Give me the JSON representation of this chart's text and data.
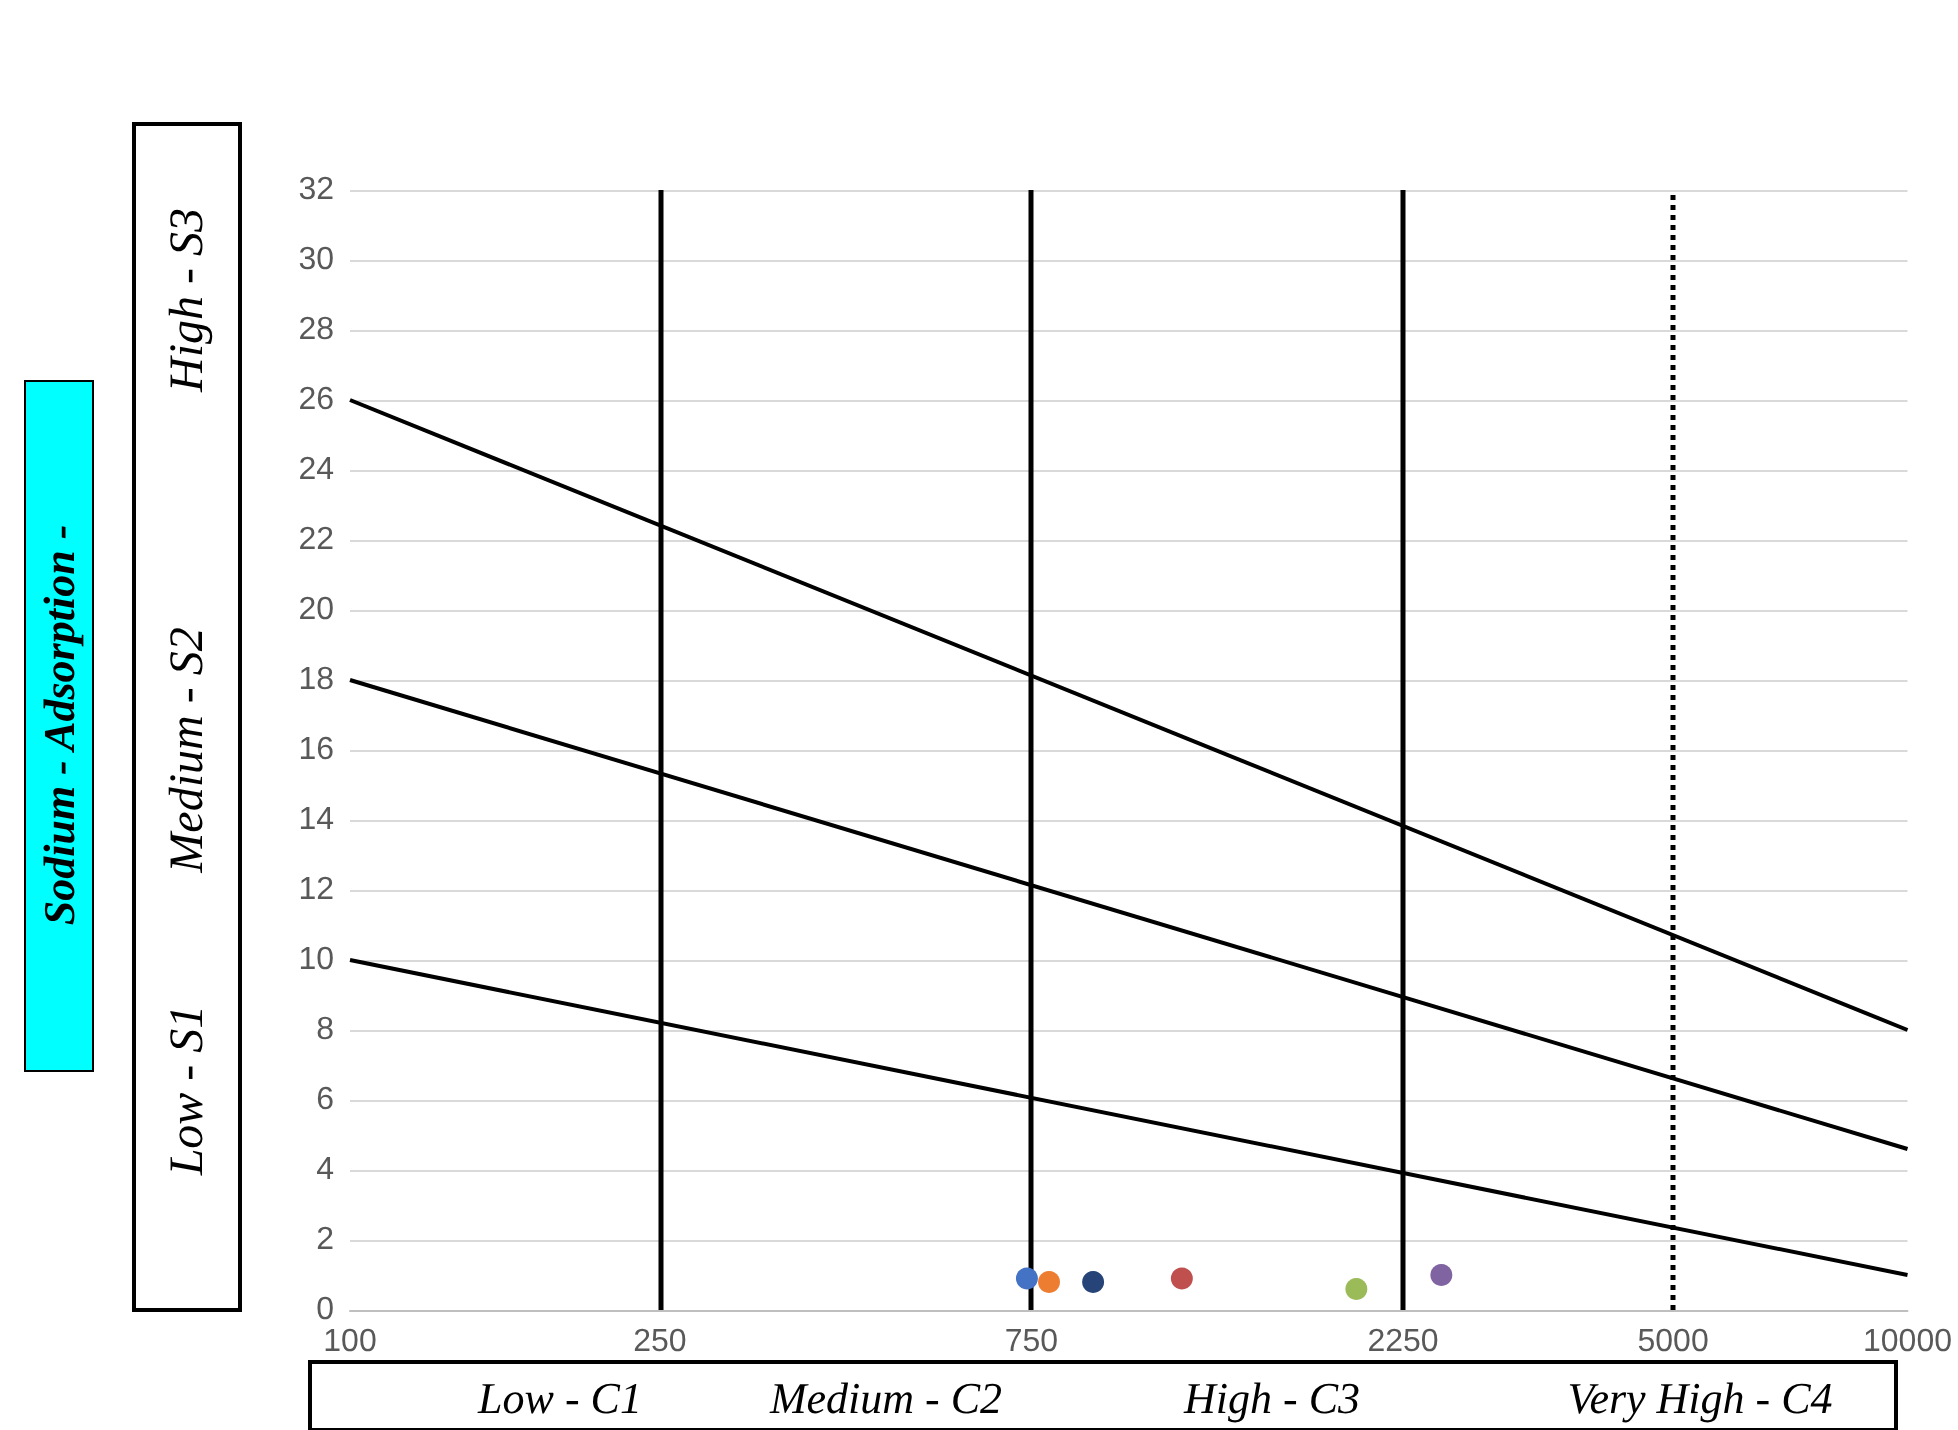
{
  "chart_data": {
    "type": "scatter",
    "ylabel": "Sodium - Adsorption -",
    "xlim": [
      100,
      10000
    ],
    "xticks": [
      100,
      250,
      750,
      2250,
      5000,
      10000
    ],
    "ylim": [
      0,
      32
    ],
    "yticks": [
      0,
      2,
      4,
      6,
      8,
      10,
      12,
      14,
      16,
      18,
      20,
      22,
      24,
      26,
      28,
      30,
      32
    ],
    "log": "x",
    "grid": "y",
    "marker": "circle",
    "series": [
      {
        "type": "line",
        "marker": "none",
        "color": "#000000",
        "x": [
          100,
          10000
        ],
        "values": [
          26,
          8
        ]
      },
      {
        "type": "line",
        "marker": "none",
        "color": "#000000",
        "x": [
          100,
          10000
        ],
        "values": [
          18,
          4.6
        ]
      },
      {
        "type": "line",
        "marker": "none",
        "color": "#000000",
        "x": [
          100,
          10000
        ],
        "values": [
          10,
          1
        ]
      },
      {
        "color": "#4472c4",
        "x": [
          740
        ],
        "values": [
          0.9
        ]
      },
      {
        "color": "#ed7d31",
        "x": [
          790
        ],
        "values": [
          0.8
        ]
      },
      {
        "color": "#264478",
        "x": [
          900
        ],
        "values": [
          0.8
        ]
      },
      {
        "color": "#c0504d",
        "x": [
          1170
        ],
        "values": [
          0.9
        ]
      },
      {
        "color": "#9bbb59",
        "x": [
          1960
        ],
        "values": [
          0.6
        ]
      },
      {
        "color": "#8064a2",
        "x": [
          2520
        ],
        "values": [
          1.0
        ]
      }
    ],
    "ref_lines": [
      {
        "axis": "x",
        "value": 250,
        "line_style": "solid"
      },
      {
        "axis": "x",
        "value": 750,
        "line_style": "solid"
      },
      {
        "axis": "x",
        "value": 2250,
        "line_style": "solid"
      },
      {
        "axis": "x",
        "value": 5000,
        "line_style": "dotted"
      }
    ],
    "annotations": [
      "Low - S1",
      "Medium - S2",
      "High - S3",
      "Low - C1",
      "Medium - C2",
      "High - C3",
      "Very High - C4"
    ]
  }
}
